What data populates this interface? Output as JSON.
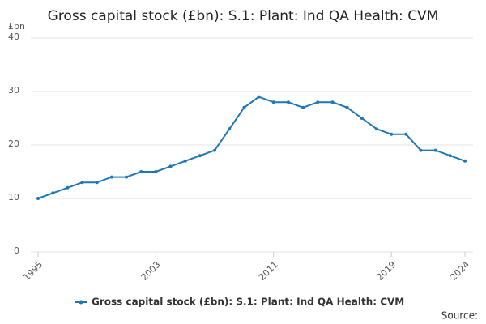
{
  "chart_data": {
    "type": "line",
    "title": "Gross capital stock (£bn): S.1: Plant: Ind QA Health: CVM",
    "y_unit": "£bn",
    "source": "Source:",
    "x": [
      1995,
      1996,
      1997,
      1998,
      1999,
      2000,
      2001,
      2002,
      2003,
      2004,
      2005,
      2006,
      2007,
      2008,
      2009,
      2010,
      2011,
      2012,
      2013,
      2014,
      2015,
      2016,
      2017,
      2018,
      2019,
      2020,
      2021,
      2022,
      2023,
      2024
    ],
    "series": [
      {
        "name": "Gross capital stock (£bn): S.1: Plant: Ind QA Health: CVM",
        "color": "#1f78b4",
        "values": [
          10,
          11,
          12,
          13,
          13,
          14,
          14,
          15,
          15,
          16,
          17,
          18,
          19,
          23,
          27,
          29,
          28,
          28,
          27,
          28,
          28,
          27,
          25,
          23,
          22,
          22,
          19,
          19,
          18,
          17
        ]
      }
    ],
    "xlim": [
      1995,
      2024
    ],
    "xticks": [
      1995,
      2003,
      2011,
      2019,
      2024
    ],
    "ylim": [
      0,
      40
    ],
    "yticks": [
      0,
      10,
      20,
      30,
      40
    ],
    "grid": true,
    "legend": "bottom"
  }
}
